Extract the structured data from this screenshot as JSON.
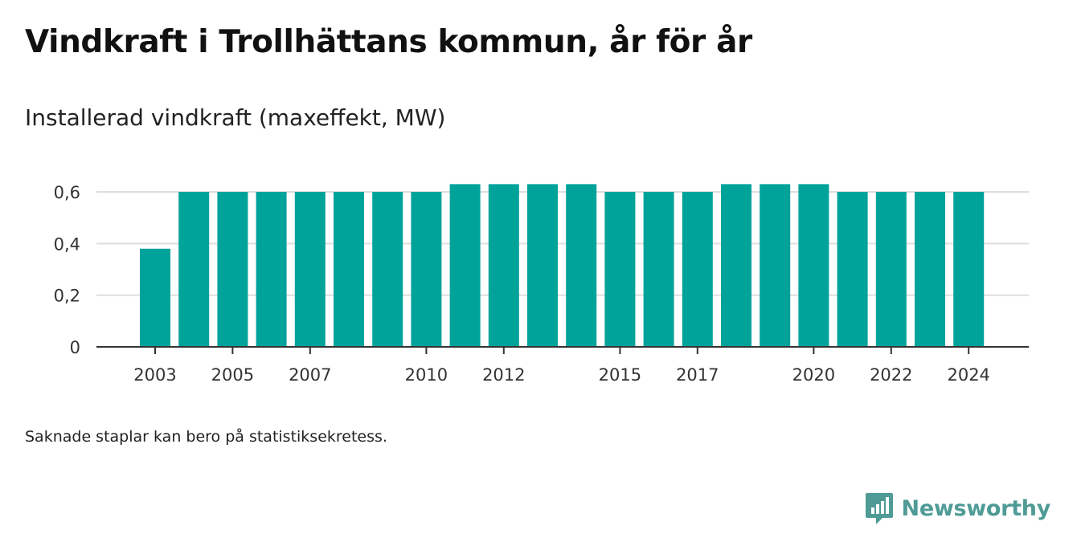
{
  "title": "Vindkraft i Trollhättans kommun, år för år",
  "subtitle": "Installerad vindkraft (maxeffekt, MW)",
  "footnote": "Saknade staplar kan bero på statistiksekretess.",
  "brand": {
    "name": "Newsworthy",
    "icon": "newsworthy-logo-icon"
  },
  "colors": {
    "bar": "#00a39a",
    "grid": "#dddddd",
    "axis": "#333333",
    "brand": "#4f9b95"
  },
  "chart_data": {
    "type": "bar",
    "categories": [
      "2003",
      "2004",
      "2005",
      "2006",
      "2007",
      "2008",
      "2009",
      "2010",
      "2011",
      "2012",
      "2013",
      "2014",
      "2015",
      "2016",
      "2017",
      "2018",
      "2019",
      "2020",
      "2021",
      "2022",
      "2023",
      "2024"
    ],
    "values": [
      0.38,
      0.6,
      0.6,
      0.6,
      0.6,
      0.6,
      0.6,
      0.6,
      0.63,
      0.63,
      0.63,
      0.63,
      0.6,
      0.6,
      0.6,
      0.63,
      0.63,
      0.63,
      0.6,
      0.6,
      0.6,
      0.6
    ],
    "x_tick_labels": [
      "2003",
      "2005",
      "2007",
      "2010",
      "2012",
      "2015",
      "2017",
      "2020",
      "2022",
      "2024"
    ],
    "y_ticks": [
      0,
      0.2,
      0.4,
      0.6
    ],
    "y_tick_labels": [
      "0",
      "0,2",
      "0,4",
      "0,6"
    ],
    "ylim": [
      0,
      0.6
    ],
    "grid": true,
    "legend": "none"
  }
}
